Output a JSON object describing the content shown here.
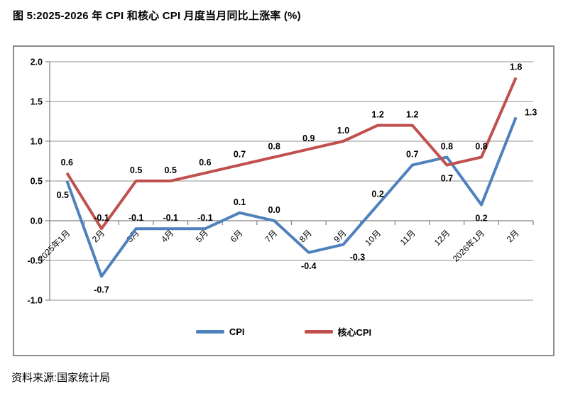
{
  "title": "图 5:2025-2026 年 CPI 和核心 CPI 月度当月同比上涨率 (%)",
  "source": "资料来源:国家统计局",
  "legend": {
    "items": [
      {
        "label": "CPI",
        "color": "#4F81BD"
      },
      {
        "label": "核心CPI",
        "color": "#C0504D"
      }
    ]
  },
  "chart_data": {
    "type": "line",
    "title": "图 5:2025-2026 年 CPI 和核心 CPI 月度当月同比上涨率 (%)",
    "categories": [
      "2025年1月",
      "2月",
      "3月",
      "4月",
      "5月",
      "6月",
      "7月",
      "8月",
      "9月",
      "10月",
      "11月",
      "12月",
      "2026年1月",
      "2月"
    ],
    "series": [
      {
        "name": "CPI",
        "color": "#4F81BD",
        "values": [
          0.5,
          -0.7,
          -0.1,
          -0.1,
          -0.1,
          0.1,
          0.0,
          -0.4,
          -0.3,
          0.2,
          0.7,
          0.8,
          0.2,
          1.3
        ],
        "labels": [
          "0.5",
          "-0.7",
          "-0.1",
          "-0.1",
          "-0.1",
          "0.1",
          "0.0",
          "-0.4",
          "-0.3",
          "0.2",
          "0.7",
          "0.8",
          "0.2",
          "1.3"
        ],
        "label_pos": [
          "below-left",
          "below",
          "above",
          "above",
          "above",
          "above",
          "above",
          "below",
          "below-right",
          "above",
          "above",
          "above",
          "below",
          "right-above"
        ]
      },
      {
        "name": "核心CPI",
        "color": "#C0504D",
        "values": [
          0.6,
          -0.1,
          0.5,
          0.5,
          0.6,
          0.7,
          0.8,
          0.9,
          1.0,
          1.2,
          1.2,
          0.7,
          0.8,
          1.8
        ],
        "labels": [
          "0.6",
          "-0.1",
          "0.5",
          "0.5",
          "0.6",
          "0.7",
          "0.8",
          "0.9",
          "1.0",
          "1.2",
          "1.2",
          "0.7",
          "0.8",
          "1.8"
        ],
        "label_pos": [
          "above",
          "above",
          "above",
          "above",
          "above",
          "above",
          "above",
          "above",
          "above",
          "above",
          "above",
          "below",
          "above",
          "above"
        ]
      }
    ],
    "ylim": [
      -1.0,
      2.0
    ],
    "yticks": [
      2.0,
      1.5,
      1.0,
      0.5,
      0.0,
      -0.5,
      -1.0
    ],
    "ytick_labels": [
      "2.0",
      "1.5",
      "1.0",
      "0.5",
      "0.0",
      "-0.5",
      "-1.0"
    ],
    "grid": true,
    "legend_position": "bottom",
    "axis_color": "#808080",
    "grid_color": "#8f8f8f"
  }
}
